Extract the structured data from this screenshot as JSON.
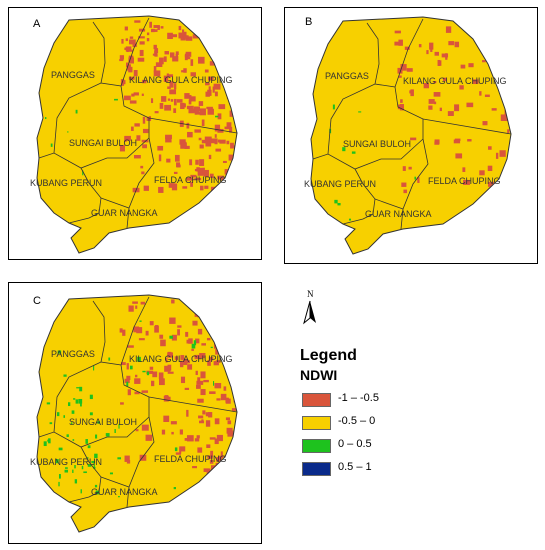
{
  "panels": [
    {
      "letter": "A",
      "label_panggas": "PANGGAS",
      "label_kilang": "KILANG GULA CHUPING",
      "label_sungai": "SUNGAI BULOH",
      "label_kubang": "KUBANG PERUN",
      "label_felda": "FELDA CHUPING",
      "label_guar": "GUAR NANGKA",
      "red_density": 0.55,
      "green_density": 0.04
    },
    {
      "letter": "B",
      "label_panggas": "PANGGAS",
      "label_kilang": "KILANG GULA CHUPING",
      "label_sungai": "SUNGAI BULOH",
      "label_kubang": "KUBANG PERUN",
      "label_felda": "FELDA CHUPING",
      "label_guar": "GUAR NANGKA",
      "red_density": 0.18,
      "green_density": 0.04
    },
    {
      "letter": "C",
      "label_panggas": "PANGGAS",
      "label_kilang": "KILANG GULA CHUPING",
      "label_sungai": "SUNGAI BULOH",
      "label_kubang": "KUBANG PERUN",
      "label_felda": "FELDA CHUPING",
      "label_guar": "GUAR NANGKA",
      "red_density": 0.4,
      "green_density": 0.28
    }
  ],
  "north_arrow": {
    "letter": "N"
  },
  "legend": {
    "title": "Legend",
    "subtitle": "NDWI",
    "items": [
      {
        "label": "-1 – -0.5",
        "color": "#d9553b"
      },
      {
        "label": "-0.5 – 0",
        "color": "#f7d000"
      },
      {
        "label": "0 – 0.5",
        "color": "#1ec21e"
      },
      {
        "label": "0.5 – 1",
        "color": "#0a2a8a"
      }
    ]
  },
  "colors": {
    "land": "#f7d000",
    "border": "#333333"
  }
}
